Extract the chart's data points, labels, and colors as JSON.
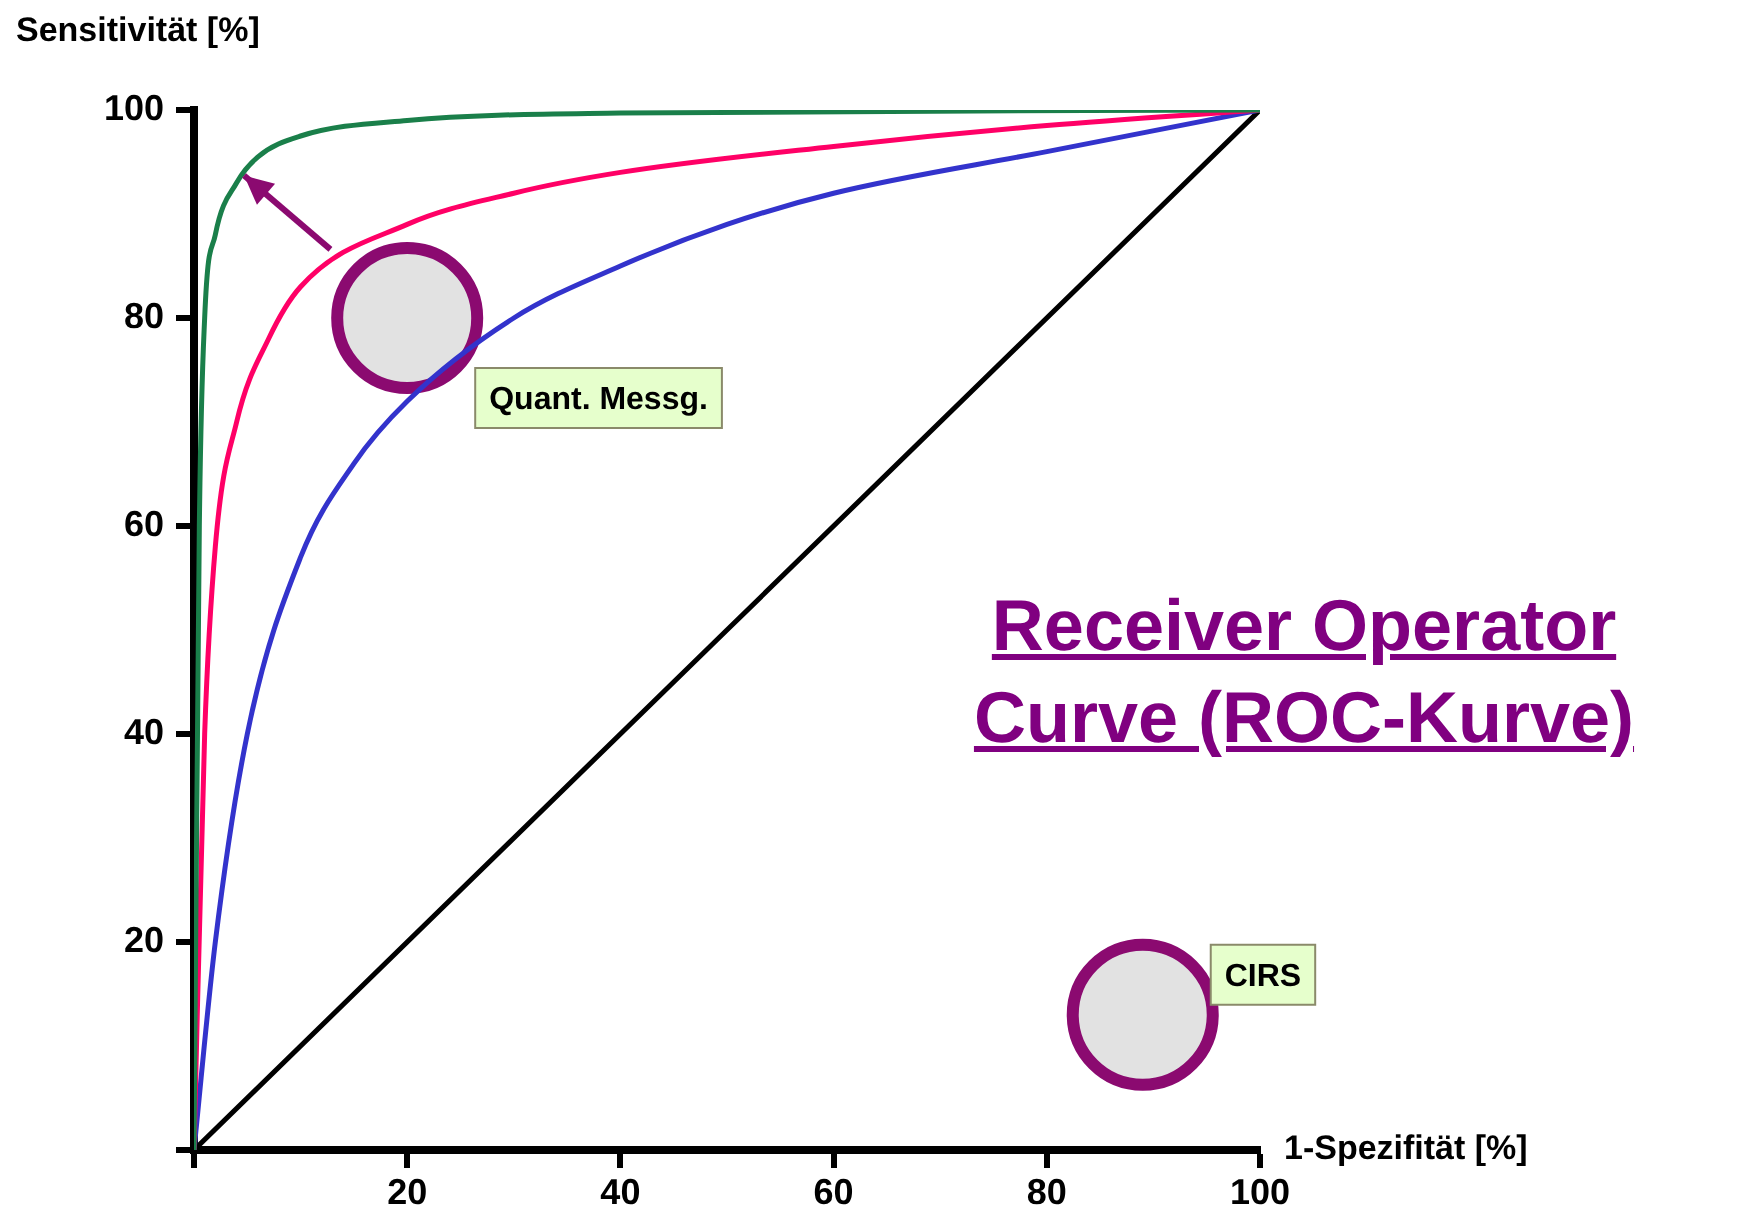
{
  "chart_data": {
    "type": "line",
    "title": "Receiver Operator Curve (ROC-Kurve)",
    "xlabel": "1-Spezifität [%]",
    "ylabel": "Sensitivität [%]",
    "xlim": [
      0,
      100
    ],
    "ylim": [
      0,
      100
    ],
    "xticks": [
      {
        "value": 0,
        "label": null
      },
      20,
      40,
      60,
      80,
      100
    ],
    "yticks": [
      {
        "value": 0,
        "label": null
      },
      20,
      40,
      60,
      80,
      100
    ],
    "grid": false,
    "legend": false,
    "line_style": "solid",
    "series": [
      {
        "type": "line",
        "color": "#1a7f4a",
        "x": [
          0,
          0.5,
          1,
          2,
          4,
          6,
          10,
          20,
          40,
          100
        ],
        "values": [
          0,
          60,
          80,
          88,
          93,
          95.5,
          97.5,
          99,
          99.7,
          100
        ]
      },
      {
        "type": "line",
        "color": "#ff0066",
        "x": [
          0,
          1,
          2,
          4,
          7,
          10,
          20,
          30,
          40,
          60,
          80,
          100
        ],
        "values": [
          0,
          40,
          58,
          70,
          78,
          83,
          89,
          92,
          94,
          96.5,
          98.5,
          100
        ]
      },
      {
        "type": "line",
        "color": "#3333cc",
        "x": [
          0,
          2,
          5,
          10,
          15,
          20,
          30,
          40,
          50,
          60,
          80,
          100
        ],
        "values": [
          0,
          20,
          40,
          57,
          66,
          72,
          80,
          85,
          89,
          92,
          96,
          100
        ]
      },
      {
        "type": "line",
        "color": "#000000",
        "x": [
          0,
          100
        ],
        "values": [
          0,
          100
        ]
      },
      {
        "type": "scatter",
        "marker": "circle",
        "color": "#8b0a70",
        "x": [
          20,
          89
        ],
        "values": [
          80,
          13
        ]
      }
    ],
    "annotations": [
      "Quant. Messg.",
      "CIRS"
    ]
  }
}
